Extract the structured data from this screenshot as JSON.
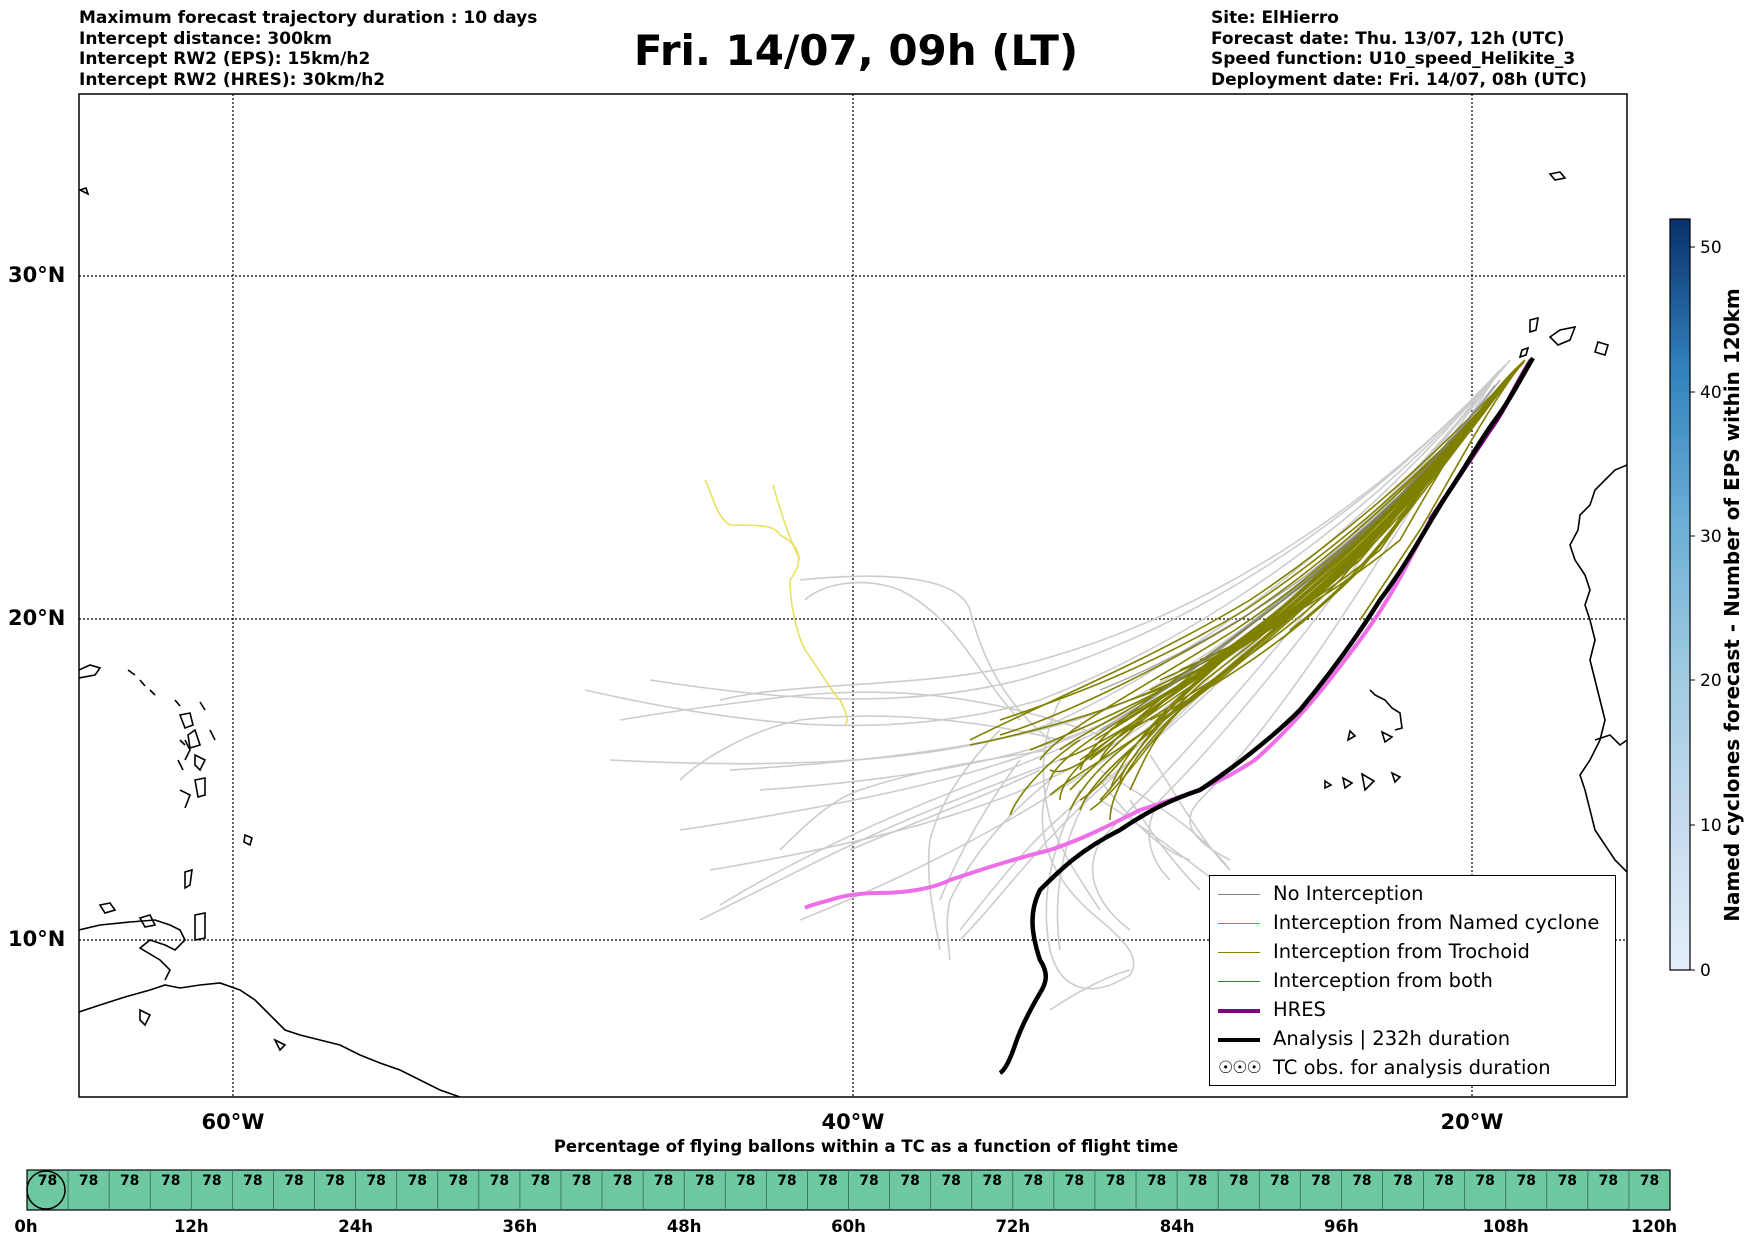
{
  "header": {
    "left_lines": [
      "Maximum forecast trajectory duration : 10 days",
      "Intercept distance: 300km",
      "Intercept RW2 (EPS):  15km/h2",
      "Intercept RW2 (HRES): 30km/h2"
    ],
    "title": "Fri. 14/07, 09h (LT)",
    "right_lines": [
      "Site: ElHierro",
      "Forecast date: Thu. 13/07, 12h (UTC)",
      "Speed function: U10_speed_Helikite_3",
      "Deployment date: Fri. 14/07, 08h (UTC)"
    ]
  },
  "map": {
    "lat_labels": [
      "30°N",
      "20°N",
      "10°N"
    ],
    "lon_labels": [
      "60°W",
      "40°W",
      "20°W"
    ],
    "colors": {
      "no_interception": "#808080",
      "ensemble_background": "#cccccc",
      "named_cyclone": "#ff5a1f",
      "trochoid": "#808000",
      "both": "#2e8b2e",
      "hres": "#800080",
      "hres_highlight": "#ee6ee8",
      "analysis": "#000000",
      "yellow_track": "#e8e060"
    }
  },
  "legend": {
    "items": [
      {
        "label": "No Interception",
        "color": "#808080",
        "style": "thin"
      },
      {
        "label": "Interception from Named cyclone",
        "color": "#ff5a1f",
        "style": "thin"
      },
      {
        "label": "Interception from Trochoid",
        "color": "#808000",
        "style": "thin"
      },
      {
        "label": "Interception from both",
        "color": "#2e8b2e",
        "style": "thin"
      },
      {
        "label": "HRES",
        "color": "#800080",
        "style": "thick"
      },
      {
        "label": "Analysis | 232h duration",
        "color": "#000000",
        "style": "thick"
      },
      {
        "label": "TC obs. for analysis duration",
        "color": "#000000",
        "style": "symbol"
      }
    ]
  },
  "colorbar": {
    "title": "Named cyclones forecast - Number of EPS within 120km",
    "ticks": [
      "0",
      "10",
      "20",
      "30",
      "40",
      "50"
    ],
    "colors": [
      "#e4eef9",
      "#c6dbef",
      "#9ecae1",
      "#6baed6",
      "#3182bd",
      "#08306b"
    ]
  },
  "timeline": {
    "title": "Percentage of flying ballons within a TC as a function of flight time",
    "cells": [
      "78",
      "78",
      "78",
      "78",
      "78",
      "78",
      "78",
      "78",
      "78",
      "78",
      "78",
      "78",
      "78",
      "78",
      "78",
      "78",
      "78",
      "78",
      "78",
      "78",
      "78",
      "78",
      "78",
      "78",
      "78",
      "78",
      "78",
      "78",
      "78",
      "78",
      "78",
      "78",
      "78",
      "78",
      "78",
      "78",
      "78",
      "78",
      "78",
      "78"
    ],
    "tick_labels": [
      "0h",
      "12h",
      "24h",
      "36h",
      "48h",
      "60h",
      "72h",
      "84h",
      "96h",
      "108h",
      "120h"
    ],
    "fill_color": "#6ec9a1"
  }
}
